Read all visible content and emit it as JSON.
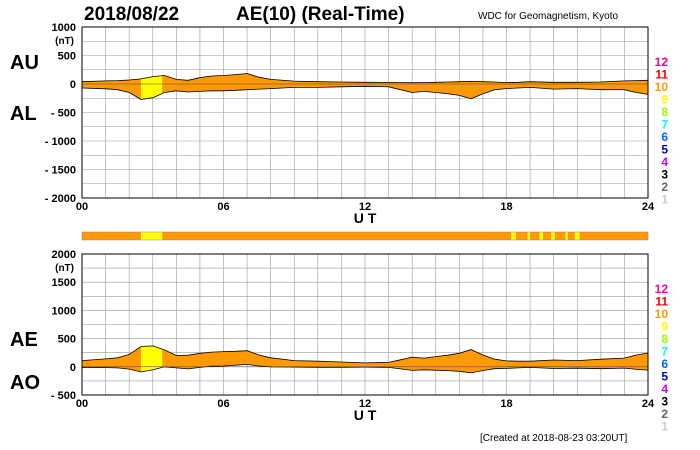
{
  "header": {
    "date": "2018/08/22",
    "title": "AE(10) (Real-Time)",
    "source": "WDC for Geomagnetism, Kyoto"
  },
  "footer": {
    "created": "[Created at 2018-08-23 03:20UT]"
  },
  "color_scale": {
    "levels": [
      "12",
      "11",
      "10",
      "9",
      "8",
      "7",
      "6",
      "5",
      "4",
      "3",
      "2",
      "1"
    ],
    "colors": [
      "#ff0099",
      "#ff0000",
      "#ff9900",
      "#ffff00",
      "#99ff00",
      "#00ffff",
      "#0066ff",
      "#0000cc",
      "#cc00ff",
      "#000000",
      "#666666",
      "#cccccc"
    ]
  },
  "fill_colors": {
    "normal": "#ff9900",
    "disturbed": "#ffff00",
    "line": "#000000"
  },
  "chart_data": [
    {
      "type": "area",
      "panel": "AU/AL",
      "side_labels": [
        "AU",
        "AL"
      ],
      "unit": "(nT)",
      "xlabel": "U T",
      "xlim": [
        0,
        24
      ],
      "xticks": [
        "00",
        "06",
        "12",
        "18",
        "24"
      ],
      "ylim": [
        -2000,
        1000
      ],
      "yticks": [
        "1000",
        "500",
        "0",
        "- 500",
        "- 1000",
        "- 1500",
        "- 2000"
      ],
      "grid": true,
      "series": [
        {
          "name": "AU",
          "x": [
            0,
            1,
            1.5,
            2,
            2.5,
            3,
            3.5,
            4,
            4.5,
            5,
            5.5,
            6,
            6.5,
            7,
            7.5,
            8,
            9,
            10,
            11,
            12,
            13,
            13.5,
            14,
            14.5,
            15,
            15.5,
            16,
            16.5,
            17,
            17.5,
            18,
            18.5,
            19,
            20,
            21,
            22,
            23,
            23.5,
            24
          ],
          "y": [
            40,
            55,
            60,
            70,
            90,
            130,
            150,
            80,
            65,
            110,
            140,
            150,
            165,
            185,
            120,
            80,
            50,
            40,
            35,
            30,
            28,
            25,
            22,
            25,
            30,
            35,
            40,
            45,
            40,
            35,
            25,
            30,
            40,
            30,
            30,
            35,
            55,
            60,
            65
          ]
        },
        {
          "name": "AL",
          "x": [
            0,
            1,
            1.5,
            2,
            2.5,
            3,
            3.5,
            4,
            4.5,
            5,
            5.5,
            6,
            6.5,
            7,
            7.5,
            8,
            9,
            10,
            11,
            12,
            13,
            13.5,
            14,
            14.5,
            15,
            15.5,
            16,
            16.5,
            17,
            17.5,
            18,
            18.5,
            19,
            20,
            21,
            22,
            23,
            23.5,
            24
          ],
          "y": [
            -70,
            -85,
            -100,
            -150,
            -270,
            -240,
            -150,
            -120,
            -140,
            -130,
            -120,
            -120,
            -110,
            -100,
            -90,
            -80,
            -60,
            -60,
            -50,
            -40,
            -50,
            -100,
            -150,
            -130,
            -150,
            -170,
            -200,
            -260,
            -170,
            -100,
            -80,
            -70,
            -60,
            -90,
            -80,
            -100,
            -100,
            -150,
            -180
          ]
        }
      ],
      "disturbed_intervals": [
        [
          2.5,
          3.4
        ]
      ]
    },
    {
      "type": "area",
      "panel": "AE/AO",
      "side_labels": [
        "AE",
        "AO"
      ],
      "unit": "(nT)",
      "xlabel": "U T",
      "xlim": [
        0,
        24
      ],
      "xticks": [
        "00",
        "06",
        "12",
        "18",
        "24"
      ],
      "ylim": [
        -500,
        2000
      ],
      "yticks": [
        "2000",
        "1500",
        "1000",
        "500",
        "0",
        "- 500"
      ],
      "grid": true,
      "series": [
        {
          "name": "AE",
          "x": [
            0,
            1,
            1.5,
            2,
            2.5,
            3,
            3.5,
            4,
            4.5,
            5,
            5.5,
            6,
            6.5,
            7,
            7.5,
            8,
            9,
            10,
            11,
            12,
            13,
            13.5,
            14,
            14.5,
            15,
            15.5,
            16,
            16.5,
            17,
            17.5,
            18,
            18.5,
            19,
            20,
            21,
            22,
            23,
            23.5,
            24
          ],
          "y": [
            110,
            140,
            160,
            220,
            360,
            370,
            300,
            200,
            205,
            240,
            260,
            270,
            275,
            285,
            210,
            160,
            110,
            100,
            85,
            70,
            78,
            125,
            172,
            155,
            180,
            205,
            240,
            305,
            210,
            135,
            105,
            100,
            100,
            120,
            110,
            135,
            155,
            210,
            245
          ]
        },
        {
          "name": "AO",
          "x": [
            0,
            1,
            1.5,
            2,
            2.5,
            3,
            3.5,
            4,
            4.5,
            5,
            5.5,
            6,
            6.5,
            7,
            7.5,
            8,
            9,
            10,
            11,
            12,
            13,
            13.5,
            14,
            14.5,
            15,
            15.5,
            16,
            16.5,
            17,
            17.5,
            18,
            18.5,
            19,
            20,
            21,
            22,
            23,
            23.5,
            24
          ],
          "y": [
            -15,
            -15,
            -20,
            -40,
            -90,
            -55,
            0,
            -20,
            -38,
            -10,
            10,
            15,
            28,
            43,
            15,
            0,
            -5,
            -10,
            -8,
            -5,
            -11,
            -38,
            -64,
            -53,
            -60,
            -68,
            -80,
            -108,
            -65,
            -33,
            -28,
            -20,
            -10,
            -30,
            -25,
            -33,
            -23,
            -45,
            -58
          ]
        }
      ],
      "disturbed_intervals": [
        [
          2.5,
          3.4
        ]
      ]
    },
    {
      "type": "heatmap",
      "panel": "activity-bar",
      "xlim": [
        0,
        24
      ],
      "intervals": [
        {
          "x0": 0,
          "x1": 2.5,
          "level": "10"
        },
        {
          "x0": 2.5,
          "x1": 3.4,
          "level": "9"
        },
        {
          "x0": 3.4,
          "x1": 18.2,
          "level": "10"
        },
        {
          "x0": 18.2,
          "x1": 18.4,
          "level": "9"
        },
        {
          "x0": 18.4,
          "x1": 18.9,
          "level": "10"
        },
        {
          "x0": 18.9,
          "x1": 19.0,
          "level": "9"
        },
        {
          "x0": 19.0,
          "x1": 19.4,
          "level": "10"
        },
        {
          "x0": 19.4,
          "x1": 19.55,
          "level": "9"
        },
        {
          "x0": 19.55,
          "x1": 19.9,
          "level": "10"
        },
        {
          "x0": 19.9,
          "x1": 20.05,
          "level": "9"
        },
        {
          "x0": 20.05,
          "x1": 20.5,
          "level": "10"
        },
        {
          "x0": 20.5,
          "x1": 20.6,
          "level": "9"
        },
        {
          "x0": 20.6,
          "x1": 20.9,
          "level": "10"
        },
        {
          "x0": 20.9,
          "x1": 21.1,
          "level": "9"
        },
        {
          "x0": 21.1,
          "x1": 24,
          "level": "10"
        }
      ]
    }
  ]
}
